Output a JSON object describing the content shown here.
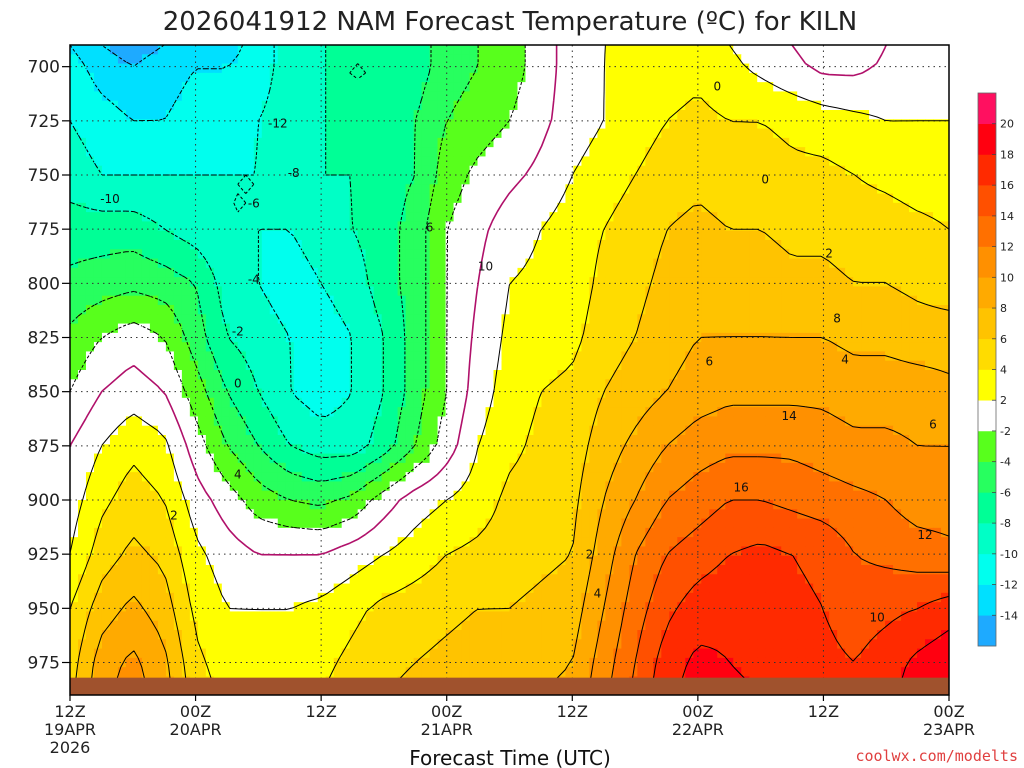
{
  "chart_data": {
    "type": "heatmap",
    "title": "2026041912 NAM Forecast Temperature (ºC) for KILN",
    "xlabel": "Forecast Time (UTC)",
    "ylabel": "",
    "y_axis": {
      "ticks": [
        700,
        725,
        750,
        775,
        800,
        825,
        850,
        875,
        900,
        925,
        950,
        975
      ],
      "range": [
        690,
        990
      ],
      "inverted": true
    },
    "x_axis": {
      "range": [
        0,
        84
      ],
      "ticks": [
        {
          "hour": 0,
          "lines": [
            "12Z",
            "19APR",
            "2026"
          ]
        },
        {
          "hour": 12,
          "lines": [
            "00Z",
            "20APR"
          ]
        },
        {
          "hour": 24,
          "lines": [
            "12Z"
          ]
        },
        {
          "hour": 36,
          "lines": [
            "00Z",
            "21APR"
          ]
        },
        {
          "hour": 48,
          "lines": [
            "12Z"
          ]
        },
        {
          "hour": 60,
          "lines": [
            "00Z",
            "22APR"
          ]
        },
        {
          "hour": 72,
          "lines": [
            "12Z"
          ]
        },
        {
          "hour": 84,
          "lines": [
            "00Z",
            "23APR"
          ]
        }
      ]
    },
    "grid": true,
    "colorbar": {
      "levels": [
        -16,
        -14,
        -12,
        -10,
        -8,
        -6,
        -4,
        -2,
        2,
        4,
        6,
        8,
        10,
        12,
        14,
        16,
        18,
        20,
        22
      ],
      "tick_labels": [
        "-14",
        "-12",
        "-10",
        "-8",
        "-6",
        "-4",
        "-2",
        "2",
        "4",
        "6",
        "8",
        "10",
        "12",
        "14",
        "16",
        "18",
        "20"
      ],
      "colors": [
        "#1eaaff",
        "#00e0ff",
        "#00ffee",
        "#00ffc6",
        "#00ff96",
        "#27ff5f",
        "#58ff1c",
        "#ffffff",
        "#ffff00",
        "#ffdc00",
        "#ffc300",
        "#ffaa00",
        "#ff9000",
        "#ff7000",
        "#ff5000",
        "#ff2a00",
        "#ff0010",
        "#ff1060"
      ]
    },
    "contour_labels": [
      "-12",
      "-10",
      "-8",
      "-6",
      "-4",
      "-2",
      "0",
      "0",
      "0",
      "2",
      "2",
      "2",
      "4",
      "4",
      "4",
      "6",
      "6",
      "6",
      "8",
      "10",
      "10",
      "12",
      "14",
      "16"
    ],
    "terrain_color": "#a0522d",
    "surface_pressure": 982,
    "temperature_grid": {
      "hours": [
        0,
        3,
        6,
        9,
        12,
        15,
        18,
        21,
        24,
        27,
        30,
        33,
        36,
        39,
        42,
        45,
        48,
        51,
        54,
        57,
        60,
        63,
        66,
        69,
        72,
        75,
        78,
        81,
        84
      ],
      "pressures": [
        690,
        700,
        725,
        750,
        775,
        800,
        825,
        850,
        875,
        900,
        925,
        950,
        975,
        990
      ],
      "values": [
        [
          -12,
          -14,
          -15,
          -14,
          -13,
          -13,
          -11,
          -9,
          -8,
          -8,
          -8,
          -7,
          -5,
          -4,
          -3,
          -1,
          1,
          2,
          2,
          3,
          3,
          2,
          1,
          0,
          -1,
          -1,
          0,
          1,
          1
        ],
        [
          -11,
          -13,
          -14,
          -13,
          -12,
          -12,
          -11,
          -9,
          -8,
          -8,
          -8,
          -7,
          -5,
          -4,
          -3,
          -1,
          1,
          2,
          2.5,
          3,
          3.5,
          2.5,
          1.5,
          0.5,
          -0.5,
          -0.5,
          0.3,
          1,
          1
        ],
        [
          -10,
          -11,
          -12,
          -12,
          -11,
          -11,
          -10,
          -9,
          -8,
          -8,
          -8,
          -6,
          -4,
          -3,
          -2,
          -0.5,
          1,
          2,
          3,
          4,
          4.5,
          4,
          4,
          3.5,
          3,
          2.5,
          2,
          2,
          2
        ],
        [
          -9,
          -10,
          -10,
          -10,
          -10,
          -10,
          -10,
          -9,
          -8,
          -8,
          -7,
          -6,
          -3,
          -1.5,
          -0.5,
          0.5,
          2,
          3,
          4,
          5,
          5.5,
          5,
          5,
          4.5,
          4.5,
          4,
          3.5,
          3,
          3
        ],
        [
          -7,
          -7,
          -7,
          -8,
          -9,
          -10,
          -10,
          -10,
          -9,
          -8,
          -7,
          -5,
          -2,
          -0.5,
          1,
          2,
          3,
          4,
          5,
          6,
          6.5,
          6,
          6,
          5.5,
          5.5,
          5,
          5,
          4.5,
          4
        ],
        [
          -5.5,
          -5,
          -4.5,
          -5,
          -6,
          -9,
          -10,
          -11,
          -10,
          -9,
          -7,
          -5,
          -2,
          0,
          2,
          2.5,
          3,
          4.5,
          5.5,
          6.5,
          7,
          7,
          7,
          6.5,
          6.5,
          6,
          6,
          5.5,
          5
        ],
        [
          -3.5,
          -2,
          -1,
          -2,
          -5,
          -8,
          -9,
          -10,
          -11,
          -10,
          -8,
          -5,
          -2,
          0.5,
          2.5,
          3,
          3.5,
          5,
          6,
          7,
          8,
          8,
          8,
          8,
          8,
          7.5,
          7.5,
          7,
          7
        ],
        [
          -2,
          0,
          1,
          0,
          -3,
          -6,
          -8,
          -10,
          -11,
          -10,
          -8,
          -5,
          -2,
          1,
          3,
          4,
          4.5,
          6,
          7,
          8,
          9,
          9.5,
          9.5,
          9.5,
          9.5,
          9,
          9,
          9,
          8.5
        ],
        [
          0,
          2,
          3.5,
          2.5,
          -1,
          -4,
          -6,
          -8,
          -9,
          -9,
          -7,
          -4,
          -1,
          2,
          3.5,
          4.5,
          5,
          7,
          8.5,
          10,
          11,
          11.5,
          11.5,
          11.5,
          11,
          10.5,
          10.5,
          10,
          10
        ],
        [
          1,
          3.5,
          5,
          4,
          1,
          -1,
          -3,
          -4,
          -4.5,
          -3.5,
          -1,
          1,
          2,
          3,
          4.5,
          5,
          5.5,
          8,
          10,
          12,
          13,
          14,
          14,
          13.5,
          13,
          12.5,
          12,
          11,
          11
        ],
        [
          2,
          5,
          6.5,
          5.5,
          2.5,
          1,
          0,
          0,
          0,
          1,
          2,
          3,
          4,
          4.5,
          5,
          5.5,
          6,
          9,
          12,
          14,
          15,
          16,
          16.5,
          16,
          15.5,
          14,
          13.5,
          13,
          12.5
        ],
        [
          4,
          7,
          8.5,
          7,
          3.5,
          2,
          2,
          2,
          2.5,
          3.5,
          4.5,
          5,
          5.5,
          6,
          6,
          6.5,
          7,
          10,
          13,
          15.5,
          17,
          17.5,
          17,
          16.5,
          16,
          15,
          15.5,
          16,
          17
        ],
        [
          5,
          9,
          10.5,
          8.5,
          4.5,
          3,
          3,
          3,
          3.5,
          4.5,
          5.5,
          6,
          6.5,
          7,
          7,
          7.5,
          8,
          11,
          14,
          17,
          18.5,
          18,
          17.5,
          17,
          16.5,
          16,
          17,
          18.5,
          19.5
        ],
        [
          5.5,
          9.5,
          11,
          9,
          5,
          3.5,
          3.5,
          3.5,
          4,
          5,
          6,
          6.5,
          7,
          7.5,
          7.5,
          8,
          8.5,
          11.5,
          14.5,
          17.5,
          19,
          18.5,
          18,
          17.5,
          17,
          16.5,
          17.5,
          19,
          20
        ]
      ]
    }
  },
  "footer": {
    "credit": "coolwx.com/modelts"
  }
}
